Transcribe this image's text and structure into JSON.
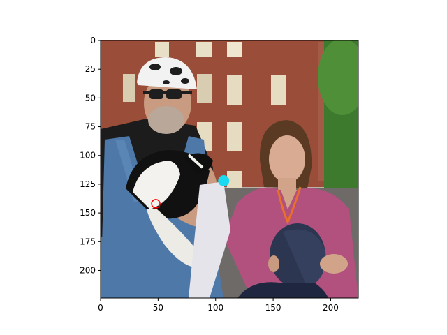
{
  "chart_data": {
    "type": "image",
    "title": "",
    "xlabel": "",
    "ylabel": "",
    "xlim": [
      0,
      224
    ],
    "ylim": [
      224,
      0
    ],
    "grid": false,
    "xticks": [
      0,
      50,
      100,
      150,
      200
    ],
    "xtick_labels": [
      "0",
      "50",
      "100",
      "150",
      "200"
    ],
    "yticks": [
      0,
      25,
      50,
      75,
      100,
      125,
      150,
      175,
      200
    ],
    "ytick_labels": [
      "0",
      "25",
      "50",
      "75",
      "100",
      "125",
      "150",
      "175",
      "200"
    ],
    "markers": [
      {
        "x": 48,
        "y": 142,
        "style": "hollow-circle",
        "color": "#ff0000"
      },
      {
        "x": 107,
        "y": 122,
        "style": "filled-circle",
        "color": "#1ad9f0"
      }
    ],
    "image_content": "photograph of a man in a cow-print cap and overalls holding a skunk, a woman in a pink shirt and a child in front of a brick building"
  }
}
